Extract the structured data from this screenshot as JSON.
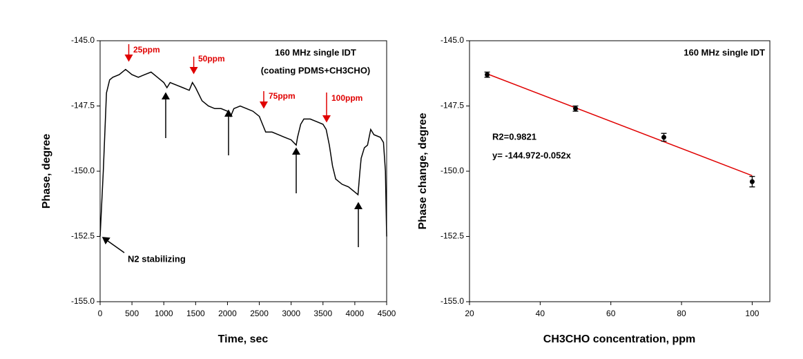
{
  "chart_data": [
    {
      "type": "line",
      "title": "160 MHz single IDT",
      "subtitle": "(coating PDMS+CH3CHO)",
      "x_label": "Time, sec",
      "y_label": "Phase, degree",
      "x": [
        0,
        50,
        100,
        150,
        200,
        300,
        400,
        500,
        600,
        700,
        800,
        900,
        1000,
        1050,
        1100,
        1200,
        1300,
        1400,
        1450,
        1500,
        1600,
        1700,
        1800,
        1900,
        2000,
        2050,
        2100,
        2200,
        2300,
        2400,
        2500,
        2550,
        2600,
        2700,
        2800,
        2900,
        3000,
        3080,
        3100,
        3150,
        3200,
        3300,
        3400,
        3500,
        3550,
        3600,
        3650,
        3700,
        3800,
        3900,
        4000,
        4050,
        4080,
        4100,
        4150,
        4200,
        4250,
        4300,
        4400,
        4450,
        4480,
        4500
      ],
      "values": [
        -152.5,
        -150,
        -147,
        -146.5,
        -146.4,
        -146.3,
        -146.1,
        -146.3,
        -146.4,
        -146.3,
        -146.2,
        -146.4,
        -146.6,
        -146.8,
        -146.6,
        -146.7,
        -146.8,
        -146.9,
        -146.6,
        -146.8,
        -147.3,
        -147.5,
        -147.6,
        -147.6,
        -147.7,
        -147.9,
        -147.6,
        -147.5,
        -147.6,
        -147.7,
        -147.9,
        -148.2,
        -148.5,
        -148.5,
        -148.6,
        -148.7,
        -148.8,
        -149.0,
        -148.7,
        -148.2,
        -148.0,
        -148.0,
        -148.1,
        -148.2,
        -148.4,
        -149.0,
        -149.8,
        -150.3,
        -150.5,
        -150.6,
        -150.8,
        -150.9,
        -150.0,
        -149.5,
        -149.1,
        -149.0,
        -148.4,
        -148.6,
        -148.7,
        -148.9,
        -150.0,
        -152.5
      ],
      "color": "#000000",
      "xlim": [
        0,
        4500
      ],
      "xticks": [
        0,
        500,
        1000,
        1500,
        2000,
        2500,
        3000,
        3500,
        4000,
        4500
      ],
      "ylim": [
        -155,
        -145
      ],
      "yticks": [
        {
          "value": -155,
          "label": "-155.0"
        },
        {
          "value": -152.5,
          "label": "-152.5"
        },
        {
          "value": -150,
          "label": "-150.0"
        },
        {
          "value": -147.5,
          "label": "-147.5"
        },
        {
          "value": -145,
          "label": "-145.0"
        }
      ],
      "grid": false,
      "annotations": [
        "25ppm",
        "50ppm",
        "75ppm",
        "100ppm",
        "N2 stabilizing"
      ]
    },
    {
      "type": "scatter",
      "title": "160 MHz single IDT",
      "x_label": "CH3CHO concentration, ppm",
      "y_label": "Phase change, degree",
      "x": [
        25,
        50,
        75,
        100
      ],
      "values": [
        -146.3,
        -147.6,
        -148.7,
        -150.4
      ],
      "errors": [
        0.1,
        0.1,
        0.15,
        0.2
      ],
      "color": "#000000",
      "fit": {
        "x": [
          25,
          100
        ],
        "values": [
          -146.27,
          -150.17
        ],
        "color": "#e00000"
      },
      "xlim": [
        20,
        105
      ],
      "xticks": [
        20,
        40,
        60,
        80,
        100
      ],
      "ylim": [
        -155,
        -145
      ],
      "yticks": [
        {
          "value": -155,
          "label": "-155.0"
        },
        {
          "value": -152.5,
          "label": "-152.5"
        },
        {
          "value": -150,
          "label": "-150.0"
        },
        {
          "value": -147.5,
          "label": "-147.5"
        },
        {
          "value": -145,
          "label": "-145.0"
        }
      ],
      "grid": false,
      "annotations": [
        "R2=0.9821",
        "y=  -144.972-0.052x"
      ]
    }
  ]
}
